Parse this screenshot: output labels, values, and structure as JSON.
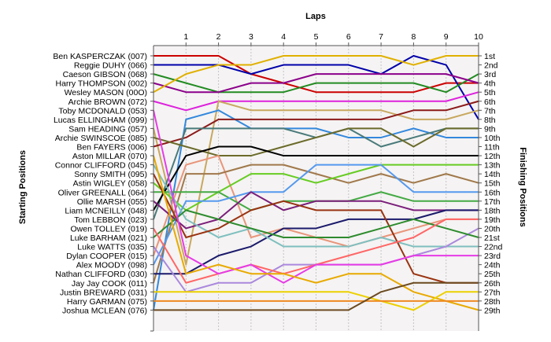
{
  "chart_data": {
    "type": "line",
    "title": "Laps",
    "ylabel_left": "Starting Positions",
    "ylabel_right": "Finishing Positions",
    "laps": [
      1,
      2,
      3,
      4,
      5,
      6,
      7,
      8,
      9,
      10
    ],
    "ylim": [
      1,
      29
    ],
    "grid": "vertical-dashed",
    "start_labels": [
      "Ben KASPERCZAK (007)",
      "Reggie DUHY (066)",
      "Caeson GIBSON (068)",
      "Harry THOMPSON (002)",
      "Wesley MASON (00O)",
      "Archie BROWN (072)",
      "Toby MCDONALD (053)",
      "Lucas ELLINGHAM (099)",
      "Sam HEADING (057)",
      "Archie SWINSCOE (085)",
      "Ben FAYERS (006)",
      "Aston MILLAR (070)",
      "Connor CLIFFORD (045)",
      "Sonny SMITH (095)",
      "Astin WIGLEY (058)",
      "Oliver GREENALL (064)",
      "Ollie MARSH (055)",
      "Liam MCNEILLY (048)",
      "Tom LEBBON (023)",
      "Owen TOLLEY (019)",
      "Luke BARHAM (021)",
      "Luke WATTS (035)",
      "Dylan COOPER (015)",
      "Alex MOODY (098)",
      "Nathan CLIFFORD (030)",
      "Jay Jay COOK (011)",
      "Justin BREWARD (031)",
      "Harry GARMAN (075)",
      "Joshua MCLEAN (076)"
    ],
    "finish_labels": [
      "1st",
      "2nd",
      "3rd",
      "4th",
      "5th",
      "6th",
      "7th",
      "8th",
      "9th",
      "10th",
      "11th",
      "12th",
      "13th",
      "14th",
      "15th",
      "16th",
      "17th",
      "18th",
      "19th",
      "20th",
      "21st",
      "22nd",
      "23rd",
      "24th",
      "25th",
      "26th",
      "27th",
      "28th",
      "29th"
    ],
    "series": [
      {
        "color": "#cc0000",
        "values": [
          1,
          1,
          1,
          3,
          4,
          5,
          5,
          5,
          5,
          4,
          4
        ]
      },
      {
        "color": "#0000aa",
        "values": [
          2,
          2,
          2,
          3,
          2,
          2,
          2,
          3,
          1,
          2,
          8
        ]
      },
      {
        "color": "#228b22",
        "values": [
          3,
          4,
          5,
          5,
          5,
          4,
          4,
          4,
          4,
          5,
          3
        ]
      },
      {
        "color": "#8b008b",
        "values": [
          4,
          5,
          5,
          4,
          4,
          3,
          3,
          3,
          3,
          3,
          4
        ]
      },
      {
        "color": "#e0b000",
        "values": [
          5,
          3,
          2,
          2,
          1,
          1,
          1,
          1,
          2,
          1,
          1
        ]
      },
      {
        "color": "#dd22dd",
        "values": [
          6,
          7,
          6,
          6,
          6,
          6,
          6,
          6,
          6,
          6,
          5
        ]
      },
      {
        "color": "#c8a860",
        "values": [
          9,
          24,
          6,
          7,
          7,
          7,
          7,
          7,
          8,
          8,
          7
        ]
      },
      {
        "color": "#3388dd",
        "values": [
          29,
          8,
          7,
          9,
          9,
          9,
          10,
          10,
          9,
          10,
          10
        ]
      },
      {
        "color": "#8b1a1a",
        "values": [
          11,
          10,
          8,
          8,
          8,
          8,
          8,
          8,
          7,
          7,
          6
        ]
      },
      {
        "color": "#4a7a7a",
        "values": [
          19,
          9,
          9,
          9,
          9,
          10,
          9,
          11,
          10,
          9,
          9
        ]
      },
      {
        "color": "#6b6b2b",
        "values": [
          10,
          11,
          12,
          12,
          11,
          10,
          9,
          9,
          11,
          9,
          9
        ]
      },
      {
        "color": "#000000",
        "values": [
          18,
          12,
          11,
          11,
          12,
          12,
          12,
          12,
          12,
          12,
          12
        ]
      },
      {
        "color": "#e8957a",
        "values": [
          23,
          13,
          12,
          21,
          20,
          21,
          22,
          21,
          20,
          19,
          19
        ]
      },
      {
        "color": "#a0784a",
        "values": [
          26,
          14,
          14,
          13,
          13,
          14,
          15,
          14,
          15,
          14,
          15
        ]
      },
      {
        "color": "#66cc22",
        "values": [
          15,
          18,
          16,
          14,
          14,
          15,
          14,
          13,
          13,
          13,
          13
        ]
      },
      {
        "color": "#44aa44",
        "values": [
          16,
          16,
          16,
          18,
          17,
          17,
          17,
          16,
          17,
          17,
          17
        ]
      },
      {
        "color": "#5599ee",
        "values": [
          24,
          17,
          17,
          16,
          16,
          13,
          13,
          13,
          16,
          16,
          16
        ]
      },
      {
        "color": "#7a1f7a",
        "values": [
          17,
          20,
          19,
          16,
          18,
          17,
          17,
          17,
          18,
          18,
          18
        ]
      },
      {
        "color": "#1a1a6b",
        "values": [
          25,
          25,
          23,
          22,
          20,
          20,
          19,
          19,
          19,
          18,
          18
        ]
      },
      {
        "color": "#7fbfbf",
        "values": [
          13,
          19,
          21,
          20,
          22,
          22,
          22,
          21,
          22,
          22,
          22
        ]
      },
      {
        "color": "#993311",
        "values": [
          14,
          21,
          20,
          18,
          17,
          18,
          18,
          18,
          25,
          26,
          26
        ]
      },
      {
        "color": "#aa88dd",
        "values": [
          22,
          27,
          26,
          26,
          24,
          24,
          24,
          24,
          23,
          22,
          20
        ]
      },
      {
        "color": "#2e8b2e",
        "values": [
          21,
          18,
          19,
          20,
          21,
          21,
          21,
          20,
          19,
          20,
          21
        ]
      },
      {
        "color": "#ff6666",
        "values": [
          20,
          26,
          25,
          24,
          25,
          24,
          23,
          22,
          21,
          19,
          19
        ]
      },
      {
        "color": "#e63ce6",
        "values": [
          7,
          23,
          25,
          24,
          26,
          24,
          24,
          24,
          23,
          23,
          23
        ]
      },
      {
        "color": "#e8aa00",
        "values": [
          12,
          25,
          24,
          25,
          25,
          26,
          25,
          25,
          27,
          28,
          29
        ]
      },
      {
        "color": "#ecd000",
        "values": [
          27,
          27,
          27,
          27,
          27,
          27,
          27,
          28,
          29,
          27,
          27
        ]
      },
      {
        "color": "#ee8a22",
        "values": [
          28,
          28,
          28,
          28,
          28,
          28,
          28,
          28,
          28,
          28,
          28
        ]
      },
      {
        "color": "#6b4a20",
        "values": [
          29,
          29,
          29,
          29,
          29,
          29,
          29,
          27,
          26,
          26,
          26
        ]
      }
    ]
  }
}
